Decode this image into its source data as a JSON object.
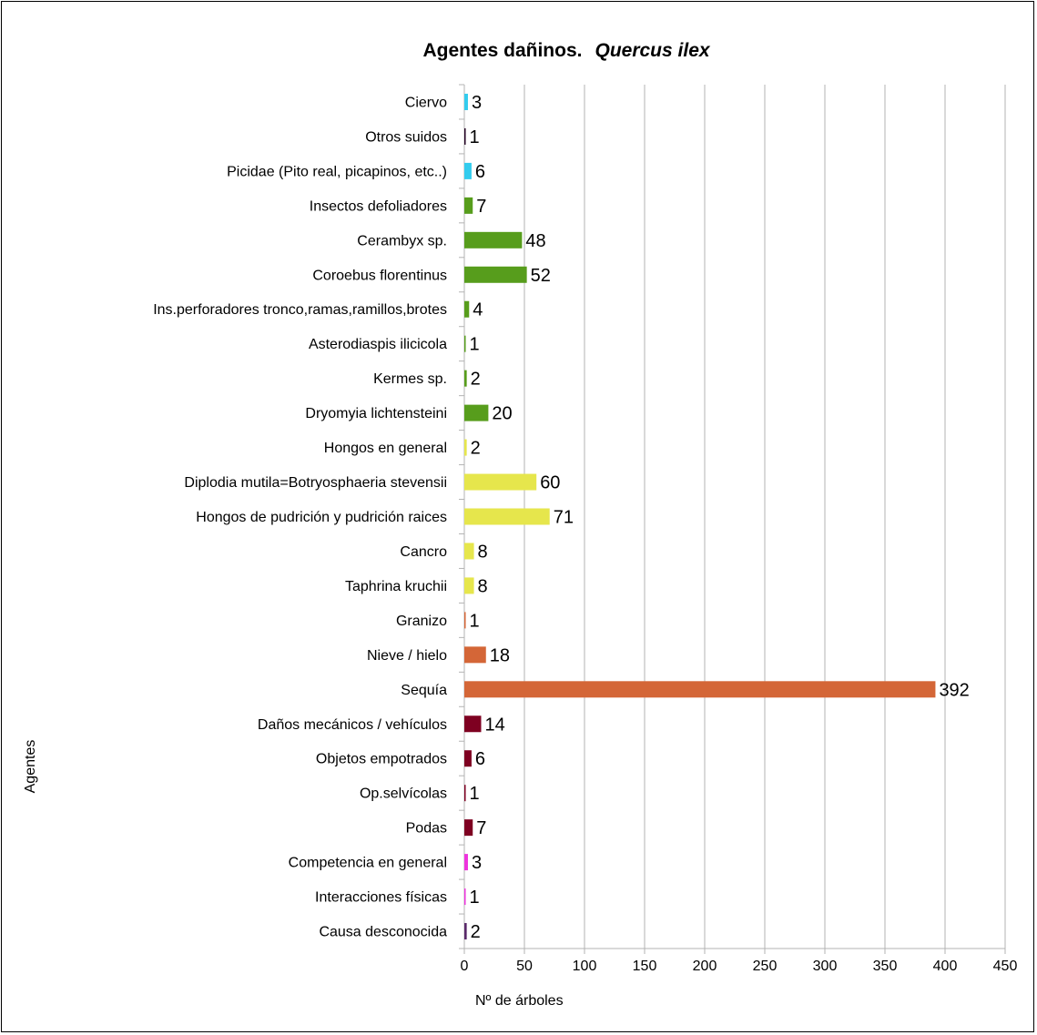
{
  "chart_data": {
    "type": "bar",
    "orientation": "horizontal",
    "title": "Agentes dañinos.",
    "title_species": "Quercus ilex",
    "xlabel": "Nº de árboles",
    "ylabel": "Agentes",
    "xlim": [
      0,
      450
    ],
    "xticks": [
      0,
      50,
      100,
      150,
      200,
      250,
      300,
      350,
      400,
      450
    ],
    "grid": "vertical",
    "categories": [
      "Ciervo",
      "Otros suidos",
      "Picidae (Pito real, picapinos, etc..)",
      "Insectos defoliadores",
      "Cerambyx sp.",
      "Coroebus florentinus",
      "Ins.perforadores tronco,ramas,ramillos,brotes",
      "Asterodiaspis ilicicola",
      "Kermes sp.",
      "Dryomyia lichtensteini",
      "Hongos en general",
      "Diplodia mutila=Botryosphaeria stevensii",
      "Hongos de pudrición y pudrición raices",
      "Cancro",
      "Taphrina kruchii",
      "Granizo",
      "Nieve / hielo",
      "Sequía",
      "Daños mecánicos / vehículos",
      "Objetos empotrados",
      "Op.selvícolas",
      "Podas",
      "Competencia en general",
      "Interacciones físicas",
      "Causa desconocida"
    ],
    "values": [
      3,
      1,
      6,
      7,
      48,
      52,
      4,
      1,
      2,
      20,
      2,
      60,
      71,
      8,
      8,
      1,
      18,
      392,
      14,
      6,
      1,
      7,
      3,
      1,
      2
    ],
    "colors": [
      "#33ccee",
      "#220022",
      "#33ccee",
      "#579d1c",
      "#579d1c",
      "#579d1c",
      "#579d1c",
      "#579d1c",
      "#579d1c",
      "#579d1c",
      "#e6e64c",
      "#e6e64c",
      "#e6e64c",
      "#e6e64c",
      "#e6e64c",
      "#d46637",
      "#d46637",
      "#d46637",
      "#7e0021",
      "#7e0021",
      "#7e0021",
      "#7e0021",
      "#ee33dd",
      "#ee33dd",
      "#5a2a6a"
    ]
  }
}
